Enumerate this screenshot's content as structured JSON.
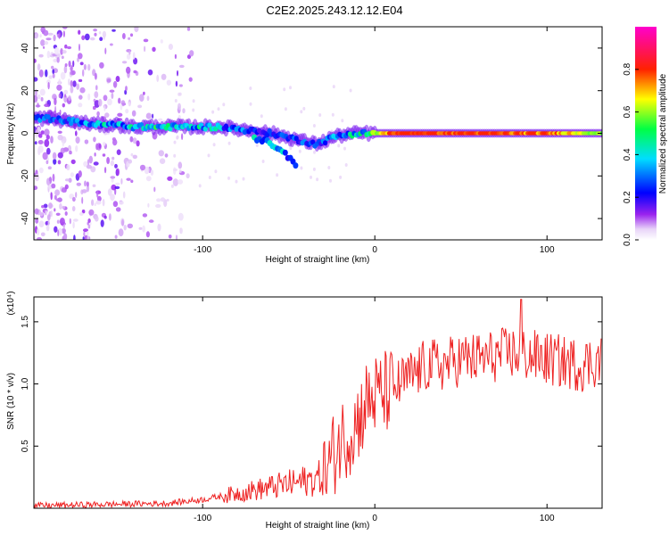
{
  "title": "C2E2.2025.243.12.12.E04",
  "chart_data": [
    {
      "type": "heatmap",
      "title": "C2E2.2025.243.12.12.E04",
      "xlabel": "Height of straight line (km)",
      "ylabel": "Frequency (Hz)",
      "xlim": [
        -198,
        132
      ],
      "ylim": [
        -50,
        50
      ],
      "xticks": [
        -100,
        0,
        100
      ],
      "yticks": [
        -40,
        -20,
        0,
        20,
        40
      ],
      "colorbar": {
        "label": "Normalized spectral amplitude",
        "range": [
          0,
          1
        ],
        "ticks": [
          "0.0",
          "0.2",
          "0.4",
          "0.6",
          "0.8"
        ]
      },
      "ridge": {
        "x": [
          -198,
          -190,
          -180,
          -170,
          -160,
          -150,
          -140,
          -130,
          -120,
          -110,
          -100,
          -90,
          -80,
          -70,
          -60,
          -50,
          -40,
          -35,
          -30,
          -25,
          -20,
          -10,
          0,
          10,
          20,
          40,
          60,
          80,
          100,
          120,
          132
        ],
        "frequency": [
          7,
          7,
          6,
          5,
          4,
          4,
          3,
          3,
          3,
          3,
          3,
          3,
          2,
          1,
          0,
          -2,
          -4,
          -5,
          -4,
          -2,
          -1,
          0,
          0,
          0,
          0,
          0,
          0,
          0,
          0,
          0,
          0
        ],
        "amplitude": [
          0.35,
          0.3,
          0.3,
          0.4,
          0.45,
          0.45,
          0.45,
          0.5,
          0.5,
          0.45,
          0.45,
          0.4,
          0.35,
          0.3,
          0.3,
          0.3,
          0.3,
          0.3,
          0.3,
          0.35,
          0.4,
          0.5,
          0.6,
          0.85,
          0.9,
          0.85,
          0.85,
          0.8,
          0.8,
          0.7,
          0.6
        ]
      },
      "branch": {
        "x": [
          -70,
          -60,
          -55,
          -50,
          -45
        ],
        "frequency": [
          -2,
          -5,
          -8,
          -11,
          -15
        ]
      },
      "noise_region_x": [
        -198,
        -120
      ]
    },
    {
      "type": "line",
      "xlabel": "Height of straight line (km)",
      "ylabel": "SNR (10 * v/v)",
      "y_multiplier": "(x10⁴)",
      "xlim": [
        -198,
        132
      ],
      "ylim": [
        0,
        1.7
      ],
      "xticks": [
        -100,
        0,
        100
      ],
      "yticks": [
        "0.5",
        "1.0",
        "1.5"
      ],
      "color": "#ee2222",
      "trend": {
        "x": [
          -198,
          -160,
          -120,
          -100,
          -80,
          -60,
          -40,
          -30,
          -25,
          -20,
          -15,
          -10,
          -5,
          0,
          10,
          20,
          30,
          40,
          50,
          60,
          80,
          100,
          120,
          132
        ],
        "snr": [
          0.02,
          0.03,
          0.04,
          0.07,
          0.12,
          0.17,
          0.22,
          0.25,
          0.4,
          0.55,
          0.6,
          0.7,
          0.85,
          0.9,
          0.95,
          1.05,
          1.15,
          1.15,
          1.2,
          1.2,
          1.25,
          1.2,
          1.15,
          1.2
        ]
      },
      "peak": {
        "x": 85,
        "snr": 1.68
      }
    }
  ]
}
